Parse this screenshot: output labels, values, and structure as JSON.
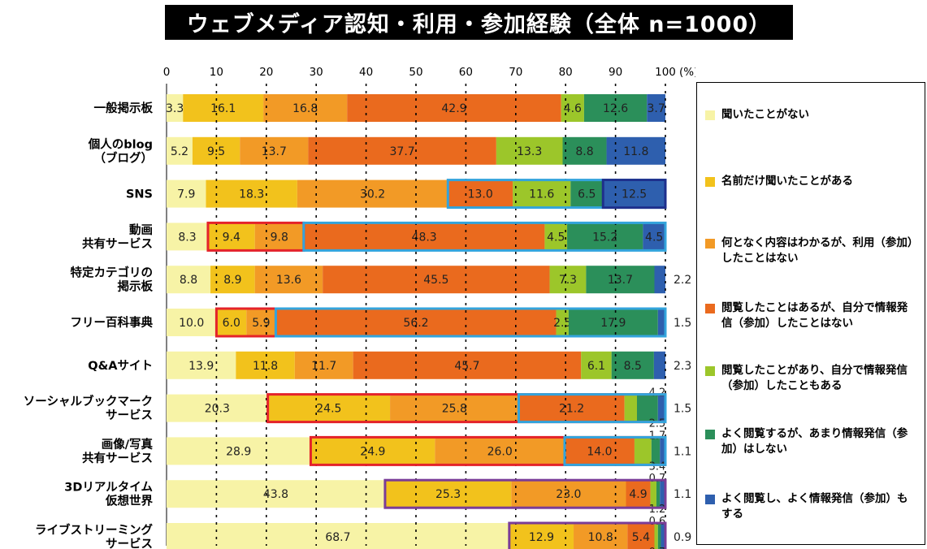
{
  "title": "ウェブメディア認知・利用・参加経験（全体 n=1000）",
  "colors": [
    "#f7f3a6",
    "#f2c21c",
    "#f29a26",
    "#ea6a1e",
    "#9cc62a",
    "#2b8f5a",
    "#2e5fae"
  ],
  "highlight_colors": {
    "red": "#e4232a",
    "blue": "#33a4dc",
    "navy": "#1e2f8c",
    "purple": "#7a3c97"
  },
  "legend": [
    "聞いたことがない",
    "名前だけ聞いたことがある",
    "何となく内容はわかるが、利用（参加）したことはない",
    "閲覧したことはあるが、自分で情報発信（参加）したことはない",
    "閲覧したことがあり、自分で情報発信（参加）したこともある",
    "よく閲覧するが、あまり情報発信（参加）はしない",
    "よく閲覧し、よく情報発信（参加）もする"
  ],
  "chart_data": {
    "type": "bar",
    "orientation": "horizontal",
    "stacked": true,
    "title": "ウェブメディア認知・利用・参加経験（全体 n=1000）",
    "xlim": [
      0,
      100
    ],
    "x_ticks": [
      "0",
      "10",
      "20",
      "30",
      "40",
      "50",
      "60",
      "70",
      "80",
      "90",
      "100"
    ],
    "x_unit": "(%)",
    "grid": "dotted vertical lines every 10",
    "legend_position": "right",
    "series": [
      "聞いたことがない",
      "名前だけ聞いたことがある",
      "何となく内容はわかるが、利用（参加）したことはない",
      "閲覧したことはあるが、自分で情報発信（参加）したことはない",
      "閲覧したことがあり、自分で情報発信（参加）したこともある",
      "よく閲覧するが、あまり情報発信（参加）はしない",
      "よく閲覧し、よく情報発信（参加）もする"
    ],
    "rows": [
      {
        "label": [
          "一般掲示板"
        ],
        "values": [
          3.3,
          16.1,
          16.8,
          42.9,
          4.6,
          12.6,
          3.7
        ],
        "labels": [
          "3.3",
          "16.1",
          "16.8",
          "42.9",
          "4.6",
          "12.6",
          "3.7"
        ]
      },
      {
        "label": [
          "個人のblog",
          "（ブログ）"
        ],
        "values": [
          5.2,
          9.5,
          13.7,
          37.7,
          13.3,
          8.8,
          11.8
        ],
        "labels": [
          "5.2",
          "9.5",
          "13.7",
          "37.7",
          "13.3",
          "8.8",
          "11.8"
        ]
      },
      {
        "label": [
          "SNS"
        ],
        "values": [
          7.9,
          18.3,
          30.2,
          13.0,
          11.6,
          6.5,
          12.5
        ],
        "labels": [
          "7.9",
          "18.3",
          "30.2",
          "13.0",
          "11.6",
          "6.5",
          "12.5"
        ]
      },
      {
        "label": [
          "動画",
          "共有サービス"
        ],
        "values": [
          8.3,
          9.4,
          9.8,
          48.3,
          4.5,
          15.2,
          4.5
        ],
        "labels": [
          "8.3",
          "9.4",
          "9.8",
          "48.3",
          "4.5",
          "15.2",
          "4.5"
        ]
      },
      {
        "label": [
          "特定カテゴリの",
          "掲示板"
        ],
        "values": [
          8.8,
          8.9,
          13.6,
          45.5,
          7.3,
          13.7,
          2.2
        ],
        "labels": [
          "8.8",
          "8.9",
          "13.6",
          "45.5",
          "7.3",
          "13.7",
          ""
        ],
        "outside": "2.2"
      },
      {
        "label": [
          "フリー百科事典"
        ],
        "values": [
          10.0,
          6.0,
          5.9,
          56.2,
          2.5,
          17.9,
          1.5
        ],
        "labels": [
          "10.0",
          "6.0",
          "5.9",
          "56.2",
          "2.5",
          "17.9",
          ""
        ],
        "outside": "1.5"
      },
      {
        "label": [
          "Q&Aサイト"
        ],
        "values": [
          13.9,
          11.8,
          11.7,
          45.7,
          6.1,
          8.5,
          2.3
        ],
        "labels": [
          "13.9",
          "11.8",
          "11.7",
          "45.7",
          "6.1",
          "8.5",
          ""
        ],
        "outside": "2.3"
      },
      {
        "label": [
          "ソーシャルブックマーク",
          "サービス"
        ],
        "values": [
          20.3,
          24.5,
          25.8,
          21.2,
          2.5,
          4.2,
          1.5
        ],
        "labels": [
          "20.3",
          "24.5",
          "25.8",
          "21.2",
          "",
          "",
          ""
        ],
        "outside": "1.5",
        "small": [
          {
            "text": "4.2",
            "pos": "above"
          },
          {
            "text": "2.5",
            "pos": "below"
          }
        ]
      },
      {
        "label": [
          "画像/写真",
          "共有サービス"
        ],
        "values": [
          28.9,
          24.9,
          26.0,
          14.0,
          3.4,
          1.7,
          1.1
        ],
        "labels": [
          "28.9",
          "24.9",
          "26.0",
          "14.0",
          "",
          "",
          ""
        ],
        "outside": "1.1",
        "small": [
          {
            "text": "1.7",
            "pos": "above"
          },
          {
            "text": "3.4",
            "pos": "below"
          }
        ]
      },
      {
        "label": [
          "3Dリアルタイム",
          "仮想世界"
        ],
        "values": [
          43.8,
          25.3,
          23.0,
          4.9,
          1.2,
          0.7,
          1.1
        ],
        "labels": [
          "43.8",
          "25.3",
          "23.0",
          "4.9",
          "",
          "",
          ""
        ],
        "outside": "1.1",
        "small": [
          {
            "text": "0.7",
            "pos": "above"
          },
          {
            "text": "1.2",
            "pos": "below"
          }
        ]
      },
      {
        "label": [
          "ライブストリーミング",
          "サービス"
        ],
        "values": [
          68.7,
          12.9,
          10.8,
          5.4,
          0.7,
          0.6,
          0.9
        ],
        "labels": [
          "68.7",
          "12.9",
          "10.8",
          "5.4",
          "",
          "",
          ""
        ],
        "outside": "0.9",
        "small": [
          {
            "text": "0.6",
            "pos": "above"
          },
          {
            "text": "0.7",
            "pos": "below"
          }
        ]
      }
    ],
    "highlights": [
      {
        "row": 2,
        "from": 56.4,
        "to": 100,
        "color": "blue"
      },
      {
        "row": 2,
        "from": 87.5,
        "to": 100,
        "color": "navy"
      },
      {
        "row": 3,
        "from": 8.3,
        "to": 27.5,
        "color": "red"
      },
      {
        "row": 3,
        "from": 27.5,
        "to": 100,
        "color": "blue"
      },
      {
        "row": 5,
        "from": 10.0,
        "to": 21.9,
        "color": "red"
      },
      {
        "row": 5,
        "from": 21.9,
        "to": 100,
        "color": "blue"
      },
      {
        "row": 7,
        "from": 20.3,
        "to": 100,
        "color": "red"
      },
      {
        "row": 7,
        "from": 70.6,
        "to": 100,
        "color": "blue"
      },
      {
        "row": 8,
        "from": 28.9,
        "to": 100,
        "color": "red"
      },
      {
        "row": 8,
        "from": 79.8,
        "to": 100,
        "color": "blue"
      },
      {
        "row": 9,
        "from": 43.8,
        "to": 100,
        "color": "purple"
      },
      {
        "row": 10,
        "from": 68.7,
        "to": 100,
        "color": "purple"
      }
    ]
  }
}
